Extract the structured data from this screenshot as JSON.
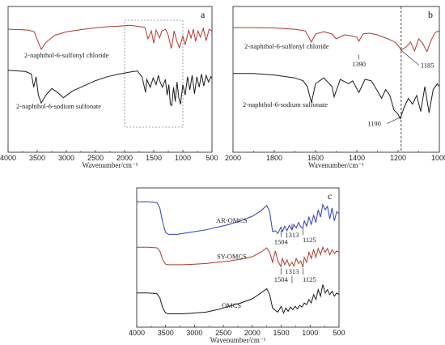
{
  "chart_data": [
    {
      "type": "line",
      "panel": "a",
      "xlabel": "Wavenumber/cm⁻¹",
      "xlim": [
        4000,
        500
      ],
      "x_ticks": [
        4000,
        3500,
        3000,
        2500,
        2000,
        1500,
        1000,
        500
      ],
      "series": [
        {
          "name": "2-naphthol-6-sulfonyl chloride",
          "color": "#b0392b",
          "offset": 0.82,
          "amplitude": 0.12,
          "x": [
            4000,
            3800,
            3650,
            3550,
            3500,
            3430,
            3350,
            3200,
            3000,
            2700,
            2400,
            2100,
            1900,
            1750,
            1650,
            1600,
            1540,
            1500,
            1460,
            1400,
            1360,
            1300,
            1250,
            1200,
            1185,
            1150,
            1100,
            1060,
            1000,
            960,
            900,
            860,
            820,
            780,
            740,
            700,
            650,
            600,
            550,
            500
          ],
          "y": [
            0.2,
            0.18,
            0.15,
            0.05,
            -0.4,
            -0.95,
            -0.55,
            -0.15,
            0.05,
            0.2,
            0.32,
            0.38,
            0.42,
            0.35,
            0.3,
            -0.35,
            0.1,
            -0.6,
            0.15,
            -0.3,
            0.1,
            0.2,
            -0.15,
            -0.9,
            -0.7,
            0.1,
            -0.5,
            -0.85,
            -0.2,
            -0.7,
            0.15,
            -0.3,
            0.2,
            -0.5,
            0.1,
            -0.25,
            0.25,
            -0.45,
            0.2,
            0.1
          ]
        },
        {
          "name": "2-naphthol-6-sodium sulfonate",
          "color": "#1a1a1a",
          "offset": 0.5,
          "amplitude": 0.18,
          "x": [
            4000,
            3700,
            3600,
            3560,
            3520,
            3480,
            3430,
            3350,
            3250,
            3150,
            3050,
            2900,
            2700,
            2500,
            2300,
            2100,
            1900,
            1780,
            1700,
            1640,
            1620,
            1560,
            1510,
            1460,
            1420,
            1390,
            1350,
            1300,
            1270,
            1240,
            1215,
            1190,
            1160,
            1130,
            1100,
            1070,
            1040,
            1000,
            960,
            920,
            880,
            840,
            800,
            760,
            720,
            680,
            640,
            600,
            560,
            520,
            500
          ],
          "y": [
            0.35,
            0.3,
            0.2,
            -0.3,
            0.1,
            -0.6,
            -0.9,
            -0.6,
            -0.35,
            -0.5,
            -0.7,
            -0.45,
            -0.25,
            -0.05,
            0.1,
            0.2,
            0.28,
            0.32,
            0.1,
            -0.5,
            0.0,
            -0.3,
            0.05,
            -0.2,
            0.15,
            -0.1,
            -0.3,
            0.0,
            -0.6,
            -0.2,
            -0.95,
            -1.0,
            -0.3,
            -0.85,
            -0.1,
            -0.7,
            -0.95,
            -0.2,
            -0.6,
            0.1,
            -0.4,
            0.15,
            -0.55,
            0.1,
            -0.3,
            0.2,
            -0.25,
            0.15,
            -0.1,
            0.1,
            0.05
          ]
        }
      ]
    },
    {
      "type": "line",
      "panel": "b",
      "xlabel": "Wavenumber/cm⁻¹",
      "xlim": [
        2000,
        1000
      ],
      "x_ticks": [
        2000,
        1800,
        1600,
        1400,
        1200,
        1000
      ],
      "reference_line_x": 1185,
      "series": [
        {
          "name": "2-naphthol-6-sulfonyl chloride",
          "color": "#b0392b",
          "offset": 0.8,
          "amplitude": 0.11,
          "x": [
            2000,
            1900,
            1800,
            1700,
            1650,
            1620,
            1600,
            1560,
            1520,
            1500,
            1460,
            1430,
            1400,
            1390,
            1370,
            1340,
            1300,
            1270,
            1240,
            1210,
            1195,
            1185,
            1160,
            1140,
            1120,
            1100,
            1080,
            1060,
            1040,
            1020,
            1000
          ],
          "y": [
            0.5,
            0.5,
            0.48,
            0.4,
            0.3,
            -0.4,
            0.1,
            0.25,
            0.1,
            -0.2,
            0.05,
            0.0,
            -0.1,
            -0.35,
            0.1,
            0.15,
            0.05,
            -0.1,
            -0.25,
            -0.45,
            -0.7,
            -0.9,
            -0.7,
            -0.4,
            -0.95,
            -0.2,
            -0.5,
            -1.0,
            -0.3,
            0.2,
            0.3
          ]
        },
        {
          "name": "2-naphthol-6-sodium sulfonate",
          "color": "#1a1a1a",
          "offset": 0.43,
          "amplitude": 0.2,
          "x": [
            2000,
            1900,
            1800,
            1700,
            1660,
            1640,
            1620,
            1600,
            1560,
            1520,
            1510,
            1480,
            1440,
            1420,
            1390,
            1360,
            1330,
            1300,
            1280,
            1260,
            1240,
            1220,
            1200,
            1190,
            1170,
            1150,
            1130,
            1110,
            1090,
            1070,
            1050,
            1030,
            1010,
            1000
          ],
          "y": [
            0.55,
            0.55,
            0.5,
            0.4,
            0.3,
            0.1,
            -0.45,
            0.2,
            0.4,
            0.1,
            -0.25,
            0.35,
            0.2,
            0.3,
            -0.1,
            0.35,
            0.3,
            -0.05,
            -0.3,
            0.0,
            -0.2,
            -0.7,
            -0.85,
            -1.0,
            -0.6,
            -0.3,
            -0.5,
            -0.2,
            -0.75,
            0.1,
            -0.8,
            0.0,
            0.2,
            0.1
          ]
        }
      ]
    },
    {
      "type": "line",
      "panel": "c",
      "xlabel": "Wavenumber/cm⁻¹",
      "xlim": [
        4000,
        500
      ],
      "x_ticks": [
        4000,
        3500,
        3000,
        2500,
        2000,
        1500,
        1000,
        500
      ],
      "series": [
        {
          "name": "AR-OMCS",
          "color": "#2a3fbf",
          "offset": 0.79,
          "amplitude": 0.13,
          "x": [
            4000,
            3800,
            3650,
            3600,
            3550,
            3500,
            3450,
            3400,
            3300,
            3200,
            3000,
            2800,
            2600,
            2400,
            2200,
            2000,
            1850,
            1750,
            1700,
            1650,
            1600,
            1560,
            1504,
            1480,
            1440,
            1400,
            1360,
            1313,
            1280,
            1240,
            1200,
            1160,
            1125,
            1100,
            1060,
            1020,
            980,
            940,
            900,
            860,
            820,
            780,
            740,
            700,
            660,
            620,
            580,
            540,
            500
          ],
          "y": [
            0.85,
            0.85,
            0.8,
            0.5,
            -0.3,
            -0.85,
            -0.95,
            -0.95,
            -0.95,
            -0.9,
            -0.8,
            -0.7,
            -0.55,
            -0.4,
            -0.2,
            0.05,
            0.35,
            0.65,
            0.3,
            -0.8,
            -0.75,
            -0.9,
            -0.55,
            -0.8,
            -0.5,
            -0.75,
            -0.45,
            -0.7,
            -0.4,
            -0.6,
            -0.3,
            -0.55,
            -0.6,
            -0.2,
            -0.5,
            0.0,
            -0.4,
            0.1,
            -0.3,
            0.4,
            0.0,
            0.7,
            0.4,
            0.6,
            -0.1,
            0.5,
            -0.2,
            0.3,
            0.2
          ]
        },
        {
          "name": "SY-OMCS",
          "color": "#b0392b",
          "offset": 0.52,
          "amplitude": 0.09,
          "x": [
            4000,
            3800,
            3650,
            3600,
            3550,
            3500,
            3450,
            3400,
            3300,
            3200,
            3000,
            2800,
            2600,
            2400,
            2200,
            2000,
            1850,
            1750,
            1700,
            1650,
            1600,
            1560,
            1504,
            1480,
            1440,
            1400,
            1360,
            1313,
            1280,
            1240,
            1200,
            1160,
            1125,
            1100,
            1060,
            1020,
            980,
            940,
            900,
            860,
            820,
            780,
            740,
            700,
            660,
            620,
            580,
            540,
            500
          ],
          "y": [
            0.6,
            0.6,
            0.55,
            0.3,
            -0.4,
            -0.75,
            -0.8,
            -0.8,
            -0.8,
            -0.8,
            -0.75,
            -0.7,
            -0.6,
            -0.5,
            -0.35,
            -0.15,
            0.2,
            0.55,
            0.2,
            -0.6,
            0.3,
            -0.5,
            -0.95,
            -0.3,
            -0.8,
            -0.4,
            -0.9,
            -0.6,
            -0.9,
            -0.3,
            -0.7,
            -0.5,
            -1.0,
            -0.2,
            -0.6,
            0.2,
            -0.3,
            0.4,
            -0.2,
            0.5,
            0.0,
            0.6,
            0.2,
            0.5,
            0.0,
            0.4,
            0.1,
            0.3,
            0.2
          ]
        },
        {
          "name": "OMCS",
          "color": "#1a1a1a",
          "offset": 0.21,
          "amplitude": 0.12,
          "x": [
            4000,
            3800,
            3650,
            3600,
            3550,
            3500,
            3450,
            3400,
            3300,
            3200,
            3000,
            2800,
            2600,
            2400,
            2200,
            2000,
            1850,
            1750,
            1700,
            1650,
            1600,
            1560,
            1500,
            1460,
            1420,
            1380,
            1340,
            1300,
            1260,
            1220,
            1180,
            1140,
            1100,
            1060,
            1020,
            980,
            940,
            900,
            860,
            820,
            780,
            740,
            700,
            660,
            620,
            580,
            540,
            500
          ],
          "y": [
            0.3,
            0.3,
            0.25,
            0.0,
            -0.6,
            -0.9,
            -0.95,
            -0.95,
            -0.95,
            -0.95,
            -0.9,
            -0.85,
            -0.7,
            -0.5,
            -0.3,
            -0.05,
            0.3,
            0.55,
            0.2,
            -0.6,
            -0.75,
            -0.85,
            -0.5,
            -0.9,
            -0.6,
            -0.8,
            -0.55,
            -0.7,
            -0.5,
            -0.65,
            -0.45,
            -0.55,
            -0.3,
            -0.4,
            -0.1,
            -0.3,
            0.2,
            -0.1,
            0.5,
            0.1,
            0.8,
            0.3,
            0.5,
            0.2,
            0.4,
            0.1,
            0.3,
            0.2
          ]
        }
      ]
    }
  ],
  "annotations": {
    "b": [
      {
        "text": "1390",
        "x": 1390
      },
      {
        "text": "1185",
        "x": 1185
      },
      {
        "text": "1190",
        "x": 1190
      }
    ],
    "c": [
      {
        "text": "1504",
        "x": 1504,
        "series": "AR-OMCS"
      },
      {
        "text": "1313",
        "x": 1313,
        "series": "AR-OMCS"
      },
      {
        "text": "1125",
        "x": 1125,
        "series": "AR-OMCS"
      },
      {
        "text": "1313",
        "x": 1313,
        "series": "SY-OMCS"
      },
      {
        "text": "1504",
        "x": 1504,
        "series": "SY-OMCS"
      },
      {
        "text": "1125",
        "x": 1125,
        "series": "SY-OMCS"
      }
    ]
  },
  "panel_letters": {
    "a": "a",
    "b": "b",
    "c": "c"
  },
  "highlight_box": {
    "panel": "a",
    "x_range": [
      2000,
      1000
    ]
  }
}
